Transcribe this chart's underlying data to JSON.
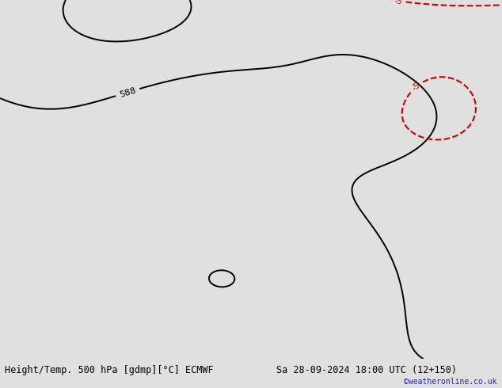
{
  "title_left": "Height/Temp. 500 hPa [gdmp][°C] ECMWF",
  "title_right": "Sa 28-09-2024 18:00 UTC (12+150)",
  "watermark": "©weatheronline.co.uk",
  "bg_color": "#e0e0e0",
  "ocean_color": "#e0e0e0",
  "land_color": "#c8f0a0",
  "border_color": "#888888",
  "country_color": "#333333",
  "black_contour_color": "#000000",
  "red_contour_color": "#cc0000",
  "orange_contour_color": "#ff8800",
  "label_fontsize": 7,
  "title_fontsize": 8.5,
  "watermark_color": "#2222cc",
  "lon_min": -120,
  "lon_max": -20,
  "lat_min": -57,
  "lat_max": 42,
  "label_588": "588"
}
